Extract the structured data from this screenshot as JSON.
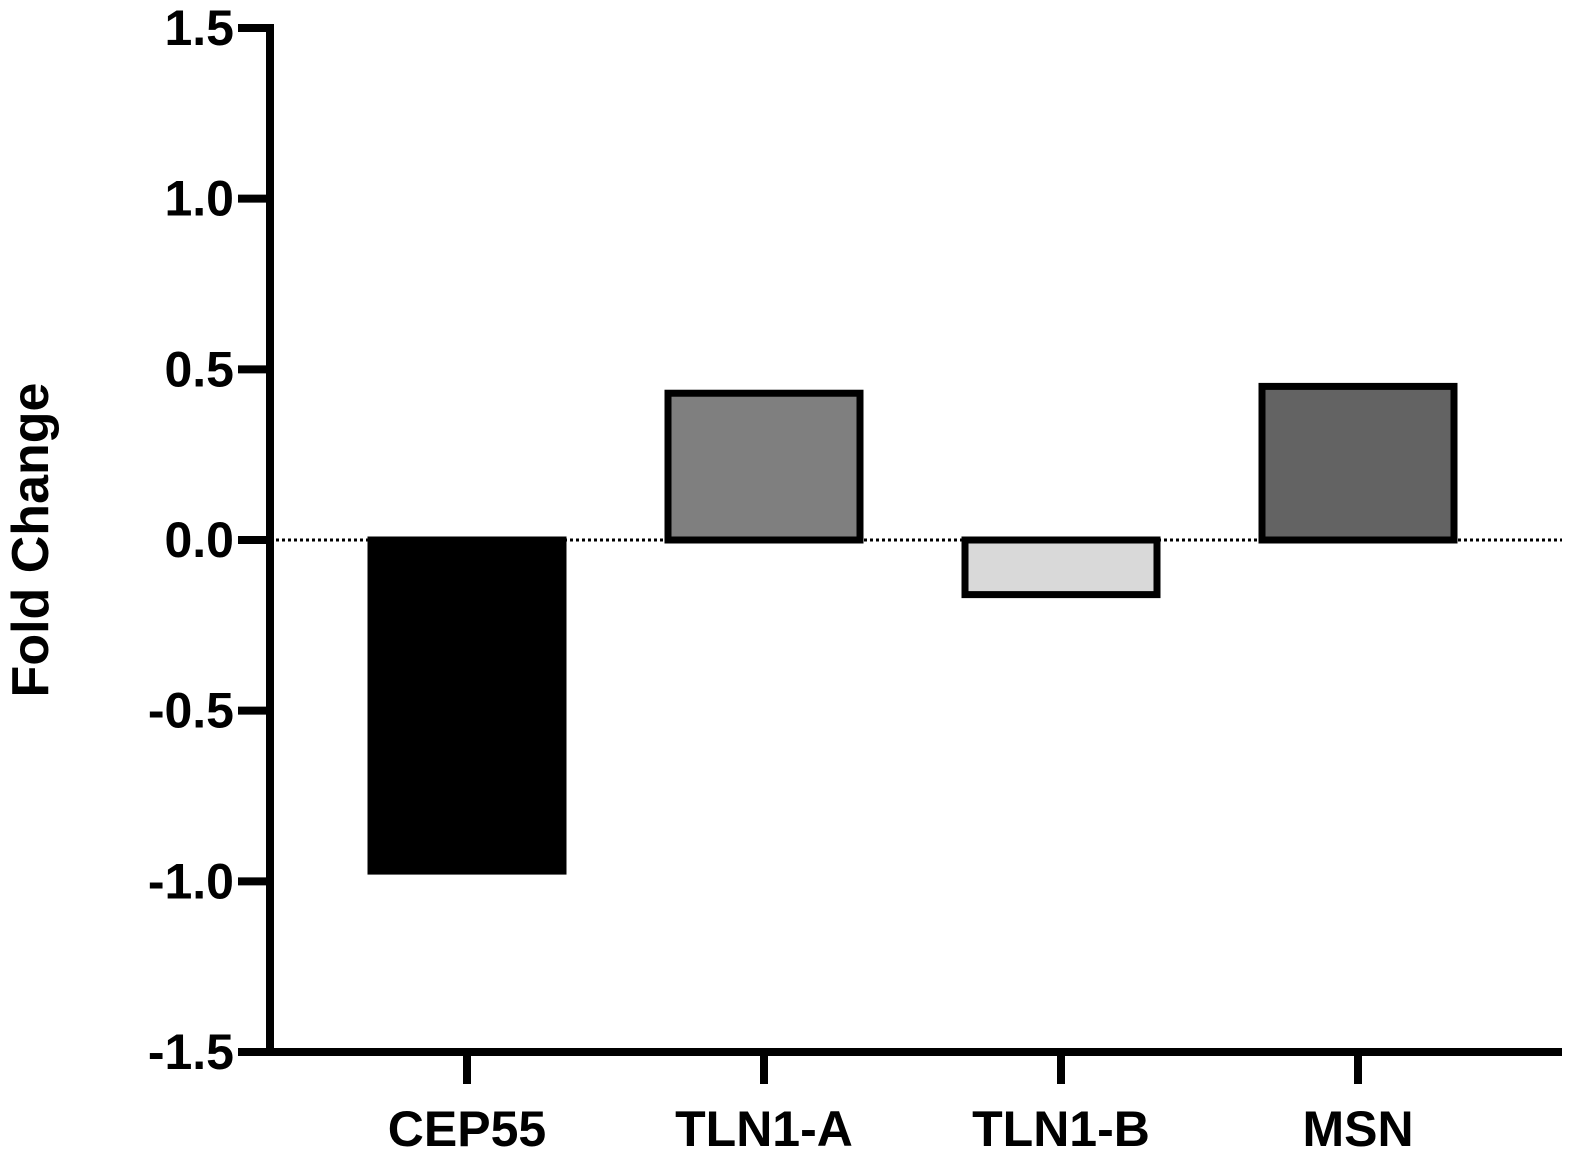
{
  "chart_data": {
    "type": "bar",
    "title": "",
    "xlabel": "",
    "ylabel": "Fold Change",
    "ylim": [
      -1.5,
      1.5
    ],
    "yticks": [
      1.5,
      1.0,
      0.5,
      0.0,
      -0.5,
      -1.0,
      -1.5
    ],
    "ytick_labels": [
      "1.5",
      "1.0",
      "0.5",
      "0.0",
      "-0.5",
      "-1.0",
      "-1.5"
    ],
    "categories": [
      "CEP55",
      "TLN1-A",
      "TLN1-B",
      "MSN"
    ],
    "values": [
      -0.97,
      0.43,
      -0.16,
      0.45
    ],
    "colors": [
      "#000000",
      "#7f7f7f",
      "#d9d9d9",
      "#636363"
    ],
    "grid": false,
    "legend": "none",
    "zero_line": "dotted"
  }
}
